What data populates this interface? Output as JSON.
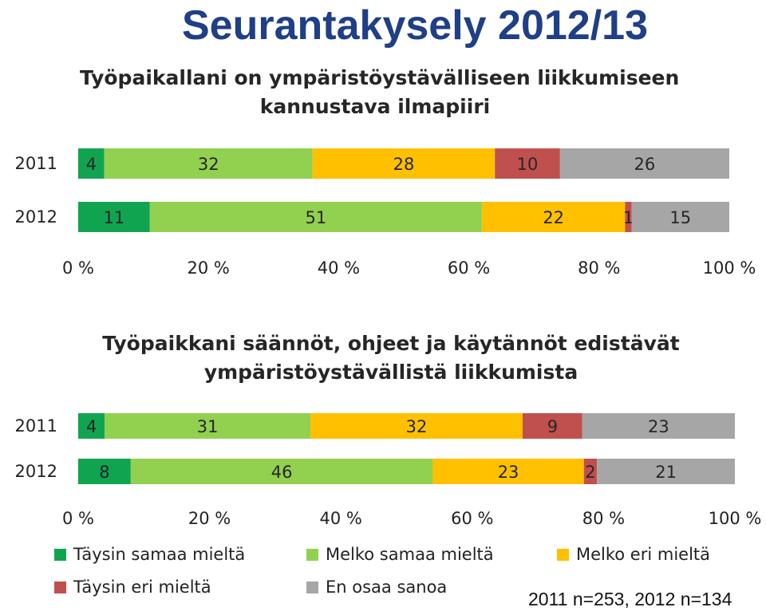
{
  "page": {
    "title": "Seurantakysely 2012/13",
    "sample_note": "2011 n=253, 2012 n=134"
  },
  "legend": [
    {
      "label": "Täysin samaa mieltä",
      "color": "#11a450"
    },
    {
      "label": "Melko samaa mieltä",
      "color": "#92d050"
    },
    {
      "label": "Melko eri mieltä",
      "color": "#ffc000"
    },
    {
      "label": "Täysin eri mieltä",
      "color": "#c0504d"
    },
    {
      "label": "En osaa sanoa",
      "color": "#a6a6a6"
    }
  ],
  "chart_data": [
    {
      "type": "bar",
      "stacked": "percent",
      "orientation": "horizontal",
      "title_lines": [
        "Työpaikallani on ympäristöystävälliseen liikkumiseen",
        "kannustava ilmapiiri"
      ],
      "categories": [
        "2011",
        "2012"
      ],
      "series": [
        {
          "name": "Täysin samaa mieltä",
          "values": [
            4,
            11
          ]
        },
        {
          "name": "Melko samaa mieltä",
          "values": [
            32,
            51
          ]
        },
        {
          "name": "Melko eri mieltä",
          "values": [
            28,
            22
          ]
        },
        {
          "name": "Täysin eri mieltä",
          "values": [
            10,
            1
          ]
        },
        {
          "name": "En osaa sanoa",
          "values": [
            26,
            15
          ]
        }
      ],
      "xlim": [
        0,
        100
      ],
      "x_ticks": [
        "0 %",
        "20 %",
        "40 %",
        "60 %",
        "80 %",
        "100 %"
      ],
      "grid": false
    },
    {
      "type": "bar",
      "stacked": "percent",
      "orientation": "horizontal",
      "title_lines": [
        "Työpaikkani säännöt, ohjeet ja käytännöt edistävät",
        "ympäristöystävällistä liikkumista"
      ],
      "categories": [
        "2011",
        "2012"
      ],
      "series": [
        {
          "name": "Täysin samaa mieltä",
          "values": [
            4,
            8
          ]
        },
        {
          "name": "Melko samaa mieltä",
          "values": [
            31,
            46
          ]
        },
        {
          "name": "Melko eri mieltä",
          "values": [
            32,
            23
          ]
        },
        {
          "name": "Täysin eri mieltä",
          "values": [
            9,
            2
          ]
        },
        {
          "name": "En osaa sanoa",
          "values": [
            23,
            21
          ]
        }
      ],
      "xlim": [
        0,
        100
      ],
      "x_ticks": [
        "0 %",
        "20 %",
        "40 %",
        "60 %",
        "80 %",
        "100 %"
      ],
      "grid": false
    }
  ]
}
